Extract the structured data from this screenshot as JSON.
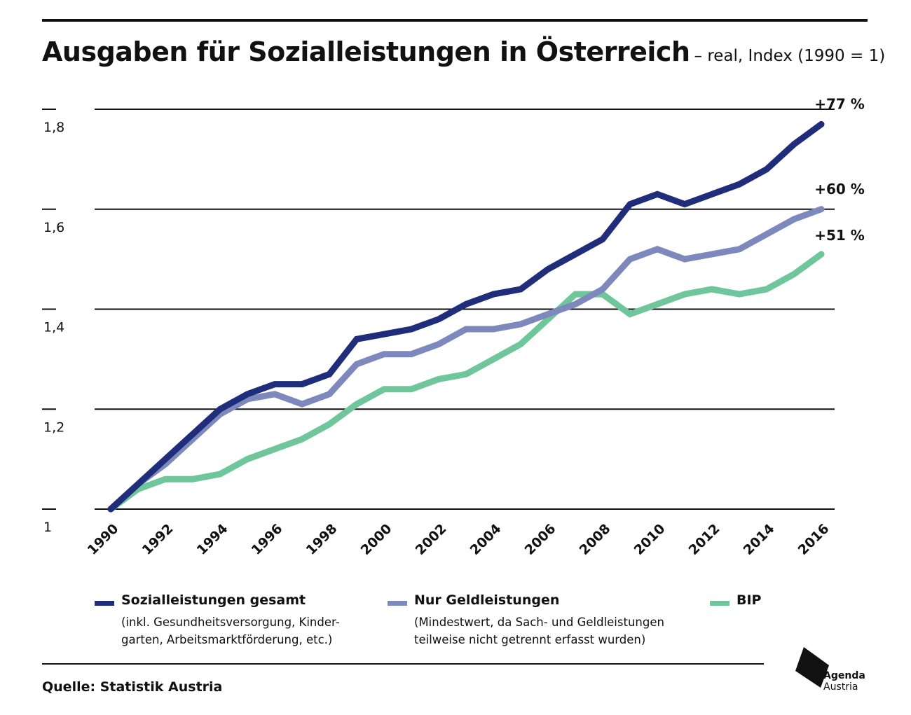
{
  "header": {
    "title": "Ausgaben für Sozialleistungen in Österreich",
    "subtitle": "– real, Index (1990 = 1)"
  },
  "chart_data": {
    "type": "line",
    "title": "Ausgaben für Sozialleistungen in Österreich",
    "subtitle": "– real, Index (1990 = 1)",
    "xlabel": "",
    "ylabel": "",
    "x": [
      1990,
      1991,
      1992,
      1993,
      1994,
      1995,
      1996,
      1997,
      1998,
      1999,
      2000,
      2001,
      2002,
      2003,
      2004,
      2005,
      2006,
      2007,
      2008,
      2009,
      2010,
      2011,
      2012,
      2013,
      2014,
      2015,
      2016
    ],
    "x_tick_labels": [
      "1990",
      "1992",
      "1994",
      "1996",
      "1998",
      "2000",
      "2002",
      "2004",
      "2006",
      "2008",
      "2010",
      "2012",
      "2014",
      "2016"
    ],
    "ylim": [
      1,
      1.8
    ],
    "y_ticks": [
      1,
      1.2,
      1.4,
      1.6,
      1.8
    ],
    "y_tick_labels": [
      "1",
      "1,2",
      "1,4",
      "1,6",
      "1,8"
    ],
    "grid": true,
    "series": [
      {
        "name": "Sozialleistungen gesamt",
        "color": "#1f2d7a",
        "end_label": "+77 %",
        "values": [
          1.0,
          1.05,
          1.1,
          1.15,
          1.2,
          1.23,
          1.25,
          1.25,
          1.27,
          1.34,
          1.35,
          1.36,
          1.38,
          1.41,
          1.43,
          1.44,
          1.48,
          1.51,
          1.54,
          1.61,
          1.63,
          1.61,
          1.63,
          1.65,
          1.68,
          1.73,
          1.77
        ]
      },
      {
        "name": "Nur Geldleistungen",
        "color": "#7d89bd",
        "end_label": "+60 %",
        "values": [
          1.0,
          1.05,
          1.09,
          1.14,
          1.19,
          1.22,
          1.23,
          1.21,
          1.23,
          1.29,
          1.31,
          1.31,
          1.33,
          1.36,
          1.36,
          1.37,
          1.39,
          1.41,
          1.44,
          1.5,
          1.52,
          1.5,
          1.51,
          1.52,
          1.55,
          1.58,
          1.6
        ]
      },
      {
        "name": "BIP",
        "color": "#6ec69a",
        "end_label": "+51 %",
        "values": [
          1.0,
          1.04,
          1.06,
          1.06,
          1.07,
          1.1,
          1.12,
          1.14,
          1.17,
          1.21,
          1.24,
          1.24,
          1.26,
          1.27,
          1.3,
          1.33,
          1.38,
          1.43,
          1.43,
          1.39,
          1.41,
          1.43,
          1.44,
          1.43,
          1.44,
          1.47,
          1.51
        ]
      }
    ],
    "legend_placement": "bottom"
  },
  "legend": [
    {
      "label": "Sozialleistungen gesamt",
      "note": "(inkl. Gesundheitsversorgung, Kinder- garten, Arbeitsmarktförderung, etc.)",
      "color": "#1f2d7a"
    },
    {
      "label": "Nur Geldleistungen",
      "note": "(Mindestwert, da Sach- und Geldleistungen teilweise nicht getrennt erfasst wurden)",
      "color": "#7d89bd"
    },
    {
      "label": "BIP",
      "note": "",
      "color": "#6ec69a"
    }
  ],
  "footer": {
    "source": "Quelle: Statistik Austria",
    "logo_line1": "Agenda",
    "logo_line2": "Austria"
  }
}
